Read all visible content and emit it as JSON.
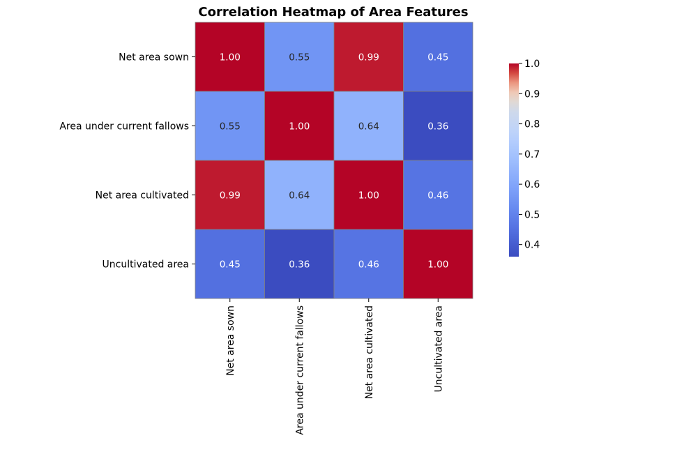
{
  "chart_data": {
    "type": "heatmap",
    "title": "Correlation Heatmap of Area Features",
    "xlabel": "",
    "ylabel": "",
    "rows": [
      "Net area sown",
      "Area under current fallows",
      "Net area cultivated",
      "Uncultivated area "
    ],
    "cols": [
      "Net area sown",
      "Area under current fallows",
      "Net area cultivated",
      "Uncultivated area"
    ],
    "values": [
      [
        1.0,
        0.55,
        0.99,
        0.45
      ],
      [
        0.55,
        1.0,
        0.64,
        0.36
      ],
      [
        0.99,
        0.64,
        1.0,
        0.46
      ],
      [
        0.45,
        0.36,
        0.46,
        1.0
      ]
    ],
    "value_format": "0.00",
    "colormap": "coolwarm",
    "colorbar": {
      "range": [
        0.36,
        1.0
      ],
      "ticks": [
        0.4,
        0.5,
        0.6,
        0.7,
        0.8,
        0.9,
        1.0
      ],
      "tick_labels": [
        "0.4",
        "0.5",
        "0.6",
        "0.7",
        "0.8",
        "0.9",
        "1.0"
      ],
      "placement": "right"
    },
    "grid": false,
    "colors": {
      "cell_border": "#808080",
      "text_dark": "#262626",
      "text_light": "#ffffff"
    }
  }
}
